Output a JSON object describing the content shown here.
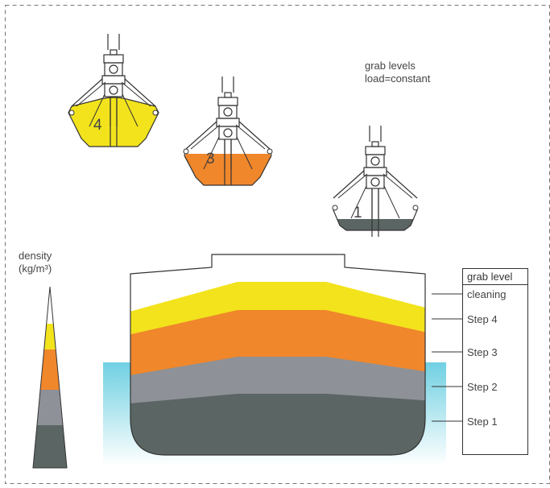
{
  "grab_levels_title": {
    "line1": "grab levels",
    "line2": "load=constant"
  },
  "density_label": {
    "line1": "density",
    "line2": "(kg/m³)"
  },
  "grabs": [
    {
      "number": "4",
      "color": "#f2e31c"
    },
    {
      "number": "3",
      "color": "#f0872b"
    },
    {
      "number": "1",
      "color": "#5b6563"
    }
  ],
  "grab_level_table": {
    "header": "grab level",
    "rows": [
      "cleaning",
      "Step 4",
      "Step 3",
      "Step 2",
      "Step 1"
    ]
  },
  "layer_colors": {
    "cleaning": "#ffffff",
    "step4": "#f2e31c",
    "step3": "#f0872b",
    "step2": "#8e9197",
    "step1": "#5b6563",
    "water": "#6fd0e2"
  }
}
